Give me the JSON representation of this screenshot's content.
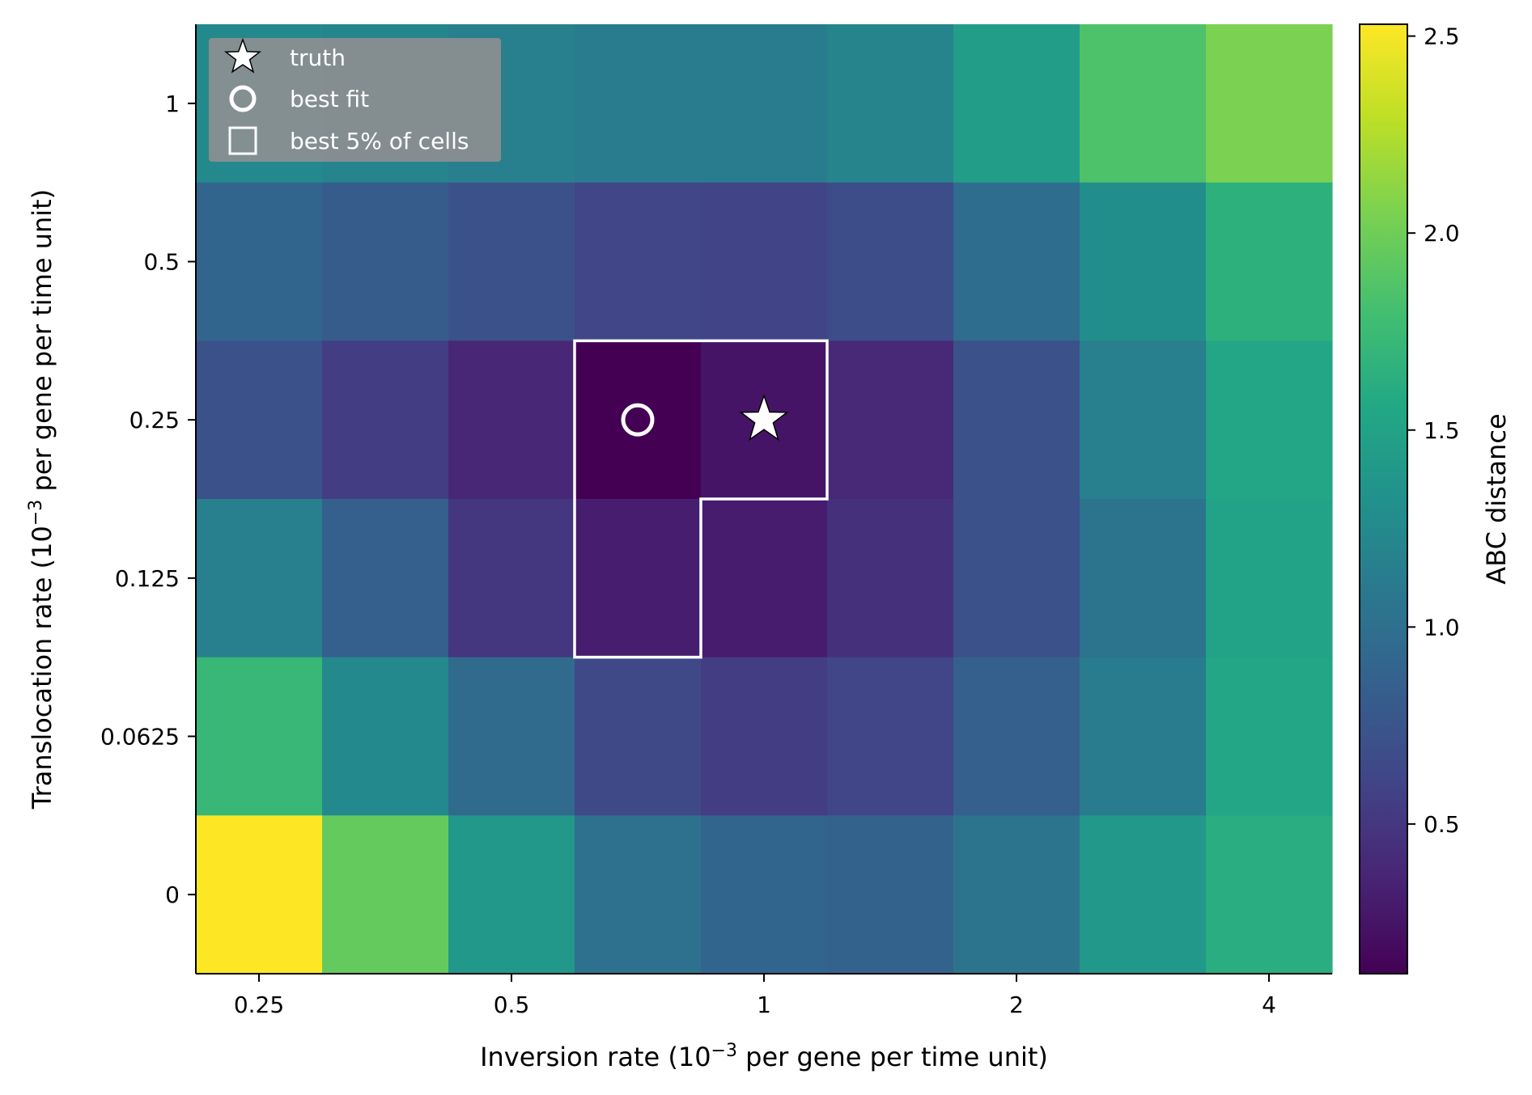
{
  "chart_data": {
    "type": "heatmap",
    "xlabel": {
      "prefix": "Inversion rate (10",
      "sup": "−3",
      "suffix": " per gene per time unit)"
    },
    "ylabel": {
      "prefix": "Translocation rate (10",
      "sup": "−3",
      "suffix": " per gene per time unit)"
    },
    "x_tick_labels": [
      "0.25",
      "0.5",
      "1",
      "2",
      "4"
    ],
    "y_tick_labels": [
      "1",
      "0.5",
      "0.25",
      "0.125",
      "0.0625",
      "0"
    ],
    "grid_columns": 9,
    "x_tick_positions": [
      0.5,
      2.5,
      4.5,
      6.5,
      8.5
    ],
    "colorbar": {
      "label": "ABC distance",
      "colormap": "viridis",
      "range": [
        0.12,
        2.53
      ],
      "ticks": [
        "0.5",
        "1.0",
        "1.5",
        "2.0",
        "2.5"
      ],
      "tick_values": [
        0.5,
        1.0,
        1.5,
        2.0,
        2.5
      ]
    },
    "rows_top_to_bottom": [
      [
        1.25,
        1.2,
        1.15,
        1.12,
        1.12,
        1.2,
        1.45,
        1.85,
        2.05
      ],
      [
        0.9,
        0.82,
        0.72,
        0.62,
        0.6,
        0.68,
        0.98,
        1.3,
        1.65
      ],
      [
        0.72,
        0.55,
        0.38,
        0.12,
        0.25,
        0.4,
        0.72,
        1.15,
        1.55
      ],
      [
        1.15,
        0.85,
        0.5,
        0.32,
        0.3,
        0.45,
        0.72,
        1.05,
        1.5
      ],
      [
        1.72,
        1.25,
        0.95,
        0.65,
        0.55,
        0.62,
        0.85,
        1.12,
        1.55
      ],
      [
        2.53,
        1.95,
        1.4,
        1.02,
        0.9,
        0.88,
        1.05,
        1.4,
        1.62
      ]
    ],
    "markers": {
      "truth": {
        "x": "1",
        "y": "0.25",
        "symbol": "star"
      },
      "best_fit": {
        "x_col": 3,
        "y": "0.25",
        "symbol": "circle"
      }
    },
    "best_cells": [
      [
        2,
        3
      ],
      [
        2,
        4
      ],
      [
        3,
        3
      ]
    ],
    "legend": {
      "placement": "top-left",
      "items": [
        {
          "label": "truth",
          "symbol": "star"
        },
        {
          "label": "best fit",
          "symbol": "circle"
        },
        {
          "label": "best 5% of cells",
          "symbol": "square"
        }
      ]
    }
  }
}
